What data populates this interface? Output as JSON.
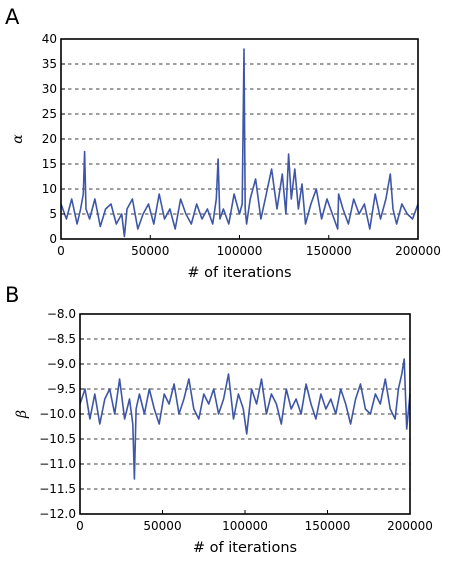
{
  "figure": {
    "trace_color": "#3f56a7"
  },
  "chart_data": [
    {
      "type": "line",
      "panel_label": "A",
      "title": "",
      "xlabel": "# of iterations",
      "ylabel": "α",
      "xlim": [
        0,
        200000
      ],
      "ylim": [
        0,
        40
      ],
      "xticks": [
        0,
        50000,
        100000,
        150000,
        200000
      ],
      "xtick_labels": [
        "0",
        "50000",
        "100000",
        "150000",
        "200000"
      ],
      "yticks": [
        0,
        5,
        10,
        15,
        20,
        25,
        30,
        35,
        40
      ],
      "ytick_labels": [
        "0",
        "5",
        "10",
        "15",
        "20",
        "25",
        "30",
        "35",
        "40"
      ],
      "grid": "horizontal dashed",
      "series": [
        {
          "color": "#3f56a7",
          "x": [
            0,
            3000,
            6000,
            9000,
            11000,
            12500,
            13200,
            14000,
            16000,
            19000,
            22000,
            25000,
            28000,
            31000,
            34000,
            35500,
            37000,
            40000,
            43000,
            46000,
            49000,
            52000,
            55000,
            58000,
            61000,
            64000,
            67000,
            70000,
            73000,
            76000,
            79000,
            82000,
            85000,
            87000,
            88000,
            89000,
            91000,
            94000,
            97000,
            100000,
            101500,
            102500,
            103200,
            104000,
            106000,
            109000,
            112000,
            115000,
            118000,
            121000,
            124000,
            126000,
            127500,
            129000,
            131000,
            133000,
            135000,
            137000,
            140000,
            143000,
            146000,
            149000,
            152000,
            155000,
            155500,
            158000,
            161000,
            164000,
            167000,
            170000,
            173000,
            176000,
            179000,
            182000,
            184500,
            186000,
            188000,
            191000,
            194000,
            197000,
            200000
          ],
          "y": [
            7,
            4,
            8,
            3,
            6,
            9,
            17.5,
            6,
            4,
            8,
            2.5,
            6,
            7,
            3,
            5,
            0.5,
            6,
            8,
            2,
            5,
            7,
            3,
            9,
            4,
            6,
            2,
            8,
            5,
            3,
            7,
            4,
            6,
            3,
            8,
            16,
            4,
            6,
            3,
            9,
            5,
            7,
            38,
            6,
            3,
            8,
            12,
            4,
            9,
            14,
            6,
            13,
            5,
            17,
            8,
            14,
            6,
            11,
            3,
            7,
            10,
            4,
            8,
            5,
            2,
            9,
            6,
            3,
            8,
            5,
            7,
            2,
            9,
            4,
            8,
            13,
            6,
            3,
            7,
            5,
            4,
            7
          ]
        }
      ]
    },
    {
      "type": "line",
      "panel_label": "B",
      "title": "",
      "xlabel": "# of iterations",
      "ylabel": "β",
      "xlim": [
        0,
        200000
      ],
      "ylim": [
        -12.0,
        -8.0
      ],
      "xticks": [
        0,
        50000,
        100000,
        150000,
        200000
      ],
      "xtick_labels": [
        "0",
        "50000",
        "100000",
        "150000",
        "200000"
      ],
      "yticks": [
        -12.0,
        -11.5,
        -11.0,
        -10.5,
        -10.0,
        -9.5,
        -9.0,
        -8.5,
        -8.0
      ],
      "ytick_labels": [
        "−12.0",
        "−11.5",
        "−11.0",
        "−10.5",
        "−10.0",
        "−9.5",
        "−9.0",
        "−8.5",
        "−8.0"
      ],
      "grid": "horizontal dashed",
      "series": [
        {
          "color": "#3f56a7",
          "x": [
            0,
            3000,
            6000,
            9000,
            12000,
            15000,
            18000,
            21000,
            24000,
            27000,
            30000,
            32000,
            33000,
            34000,
            36000,
            39000,
            42000,
            45000,
            48000,
            51000,
            54000,
            57000,
            60000,
            63000,
            66000,
            69000,
            72000,
            75000,
            78000,
            81000,
            84000,
            87000,
            90000,
            93000,
            96000,
            99000,
            101000,
            104000,
            107000,
            110000,
            113000,
            116000,
            119000,
            122000,
            125000,
            128000,
            131000,
            134000,
            137000,
            140000,
            143000,
            146000,
            149000,
            152000,
            155000,
            158000,
            161000,
            164000,
            167000,
            170000,
            173000,
            176000,
            179000,
            182000,
            185000,
            188000,
            191000,
            193000,
            195000,
            196500,
            198000,
            200000
          ],
          "y": [
            -9.8,
            -9.5,
            -10.1,
            -9.6,
            -10.2,
            -9.7,
            -9.5,
            -10.0,
            -9.3,
            -10.1,
            -9.7,
            -10.2,
            -11.3,
            -9.9,
            -9.6,
            -10.0,
            -9.5,
            -9.9,
            -10.2,
            -9.6,
            -9.8,
            -9.4,
            -10.0,
            -9.7,
            -9.3,
            -9.9,
            -10.1,
            -9.6,
            -9.8,
            -9.5,
            -10.0,
            -9.7,
            -9.2,
            -10.1,
            -9.6,
            -9.9,
            -10.4,
            -9.5,
            -9.8,
            -9.3,
            -10.0,
            -9.6,
            -9.8,
            -10.2,
            -9.5,
            -9.9,
            -9.7,
            -10.0,
            -9.4,
            -9.8,
            -10.1,
            -9.6,
            -9.9,
            -9.7,
            -10.0,
            -9.5,
            -9.8,
            -10.2,
            -9.7,
            -9.4,
            -9.9,
            -10.0,
            -9.6,
            -9.8,
            -9.3,
            -9.9,
            -10.1,
            -9.5,
            -9.2,
            -8.9,
            -10.3,
            -9.6
          ]
        }
      ]
    }
  ]
}
